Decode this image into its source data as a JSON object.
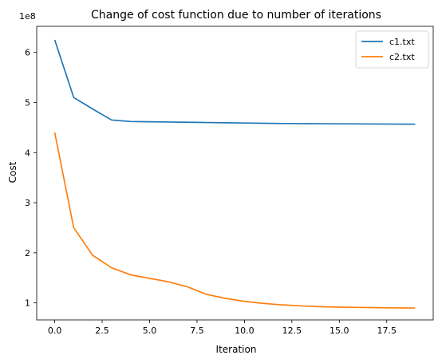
{
  "chart_data": {
    "type": "line",
    "title": "Change of cost function due to number of iterations",
    "xlabel": "Iteration",
    "ylabel": "Cost",
    "y_scale_label": "1e8",
    "xlim": [
      -0.95,
      19.95
    ],
    "ylim": [
      0.66,
      6.52
    ],
    "xticks": [
      0.0,
      2.5,
      5.0,
      7.5,
      10.0,
      12.5,
      15.0,
      17.5
    ],
    "xtick_labels": [
      "0.0",
      "2.5",
      "5.0",
      "7.5",
      "10.0",
      "12.5",
      "15.0",
      "17.5"
    ],
    "yticks": [
      1,
      2,
      3,
      4,
      5,
      6
    ],
    "ytick_labels": [
      "1",
      "2",
      "3",
      "4",
      "5",
      "6"
    ],
    "grid": false,
    "legend_position": "top-right",
    "x": [
      0,
      1,
      2,
      3,
      4,
      5,
      6,
      7,
      8,
      9,
      10,
      11,
      12,
      13,
      14,
      15,
      16,
      17,
      18,
      19
    ],
    "series": [
      {
        "name": "c1.txt",
        "color": "#1f77b4",
        "values": [
          6.25,
          5.1,
          4.87,
          4.65,
          4.62,
          4.615,
          4.61,
          4.605,
          4.6,
          4.595,
          4.59,
          4.585,
          4.58,
          4.578,
          4.576,
          4.574,
          4.572,
          4.57,
          4.568,
          4.566
        ]
      },
      {
        "name": "c2.txt",
        "color": "#ff7f0e",
        "values": [
          4.4,
          2.5,
          1.95,
          1.7,
          1.56,
          1.49,
          1.42,
          1.32,
          1.17,
          1.09,
          1.03,
          0.99,
          0.96,
          0.94,
          0.925,
          0.915,
          0.91,
          0.905,
          0.9,
          0.898
        ]
      }
    ]
  }
}
